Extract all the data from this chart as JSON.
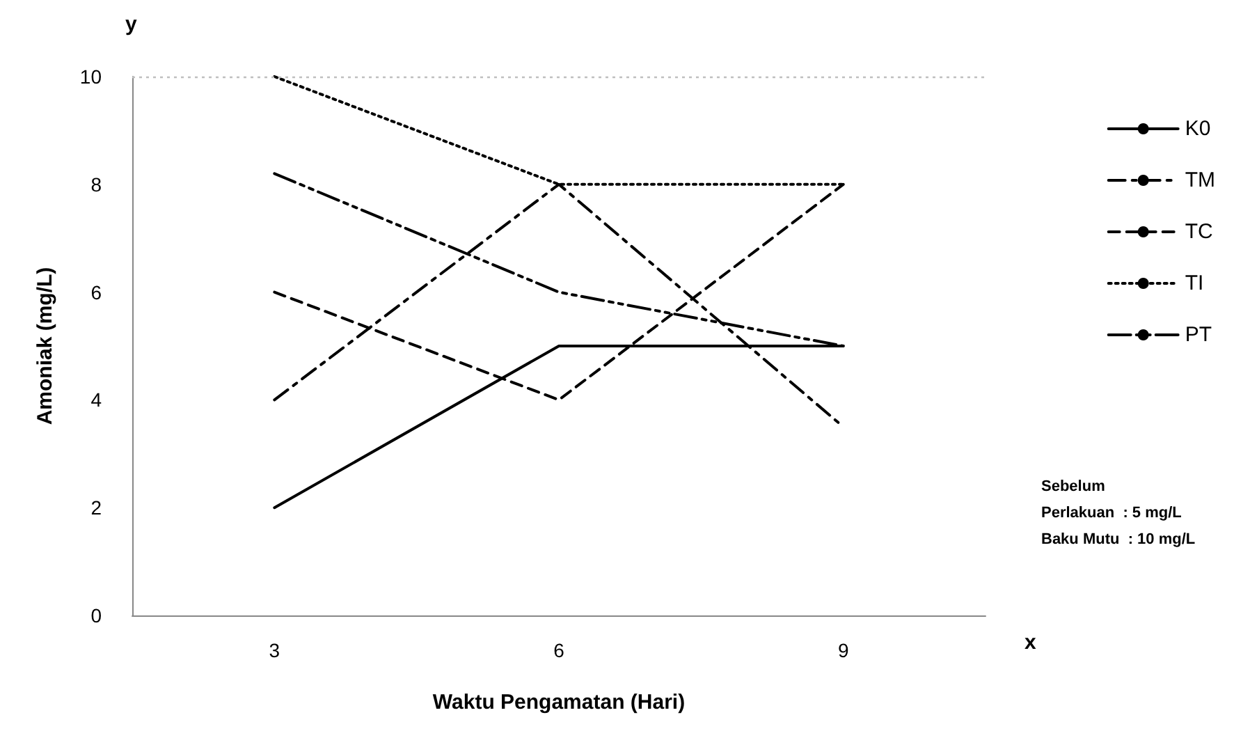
{
  "chart_data": {
    "type": "line",
    "xlabel": "Waktu Pengamatan (Hari)",
    "ylabel": "Amoniak (mg/L)",
    "categories": [
      "3",
      "6",
      "9"
    ],
    "series": [
      {
        "name": "K0",
        "color": "#000000",
        "line_style": "solid",
        "values": [
          2,
          5,
          5
        ]
      },
      {
        "name": "TM",
        "color": "#000000",
        "line_style": "dashdot",
        "values": [
          4,
          8,
          3.5
        ]
      },
      {
        "name": "TC",
        "color": "#000000",
        "line_style": "dashed",
        "values": [
          6,
          4,
          8
        ]
      },
      {
        "name": "TI",
        "color": "#000000",
        "line_style": "dotted",
        "values": [
          10,
          8,
          8
        ]
      },
      {
        "name": "PT",
        "color": "#000000",
        "line_style": "dashdotdot",
        "values": [
          8.2,
          6,
          5
        ]
      }
    ],
    "ylim": [
      0,
      10
    ],
    "yticks": [
      0,
      2,
      4,
      6,
      8,
      10
    ],
    "grid": false,
    "legend": "right",
    "marker": "none",
    "ref_lines": [
      {
        "axis": "y",
        "value": 10,
        "color": "#bfbfbf",
        "line_style": "dotted"
      }
    ],
    "annotations": [
      "y",
      "x",
      "Sebelum\nPerlakuan  : 5 mg/L\nBaku Mutu  : 10 mg/L"
    ]
  }
}
